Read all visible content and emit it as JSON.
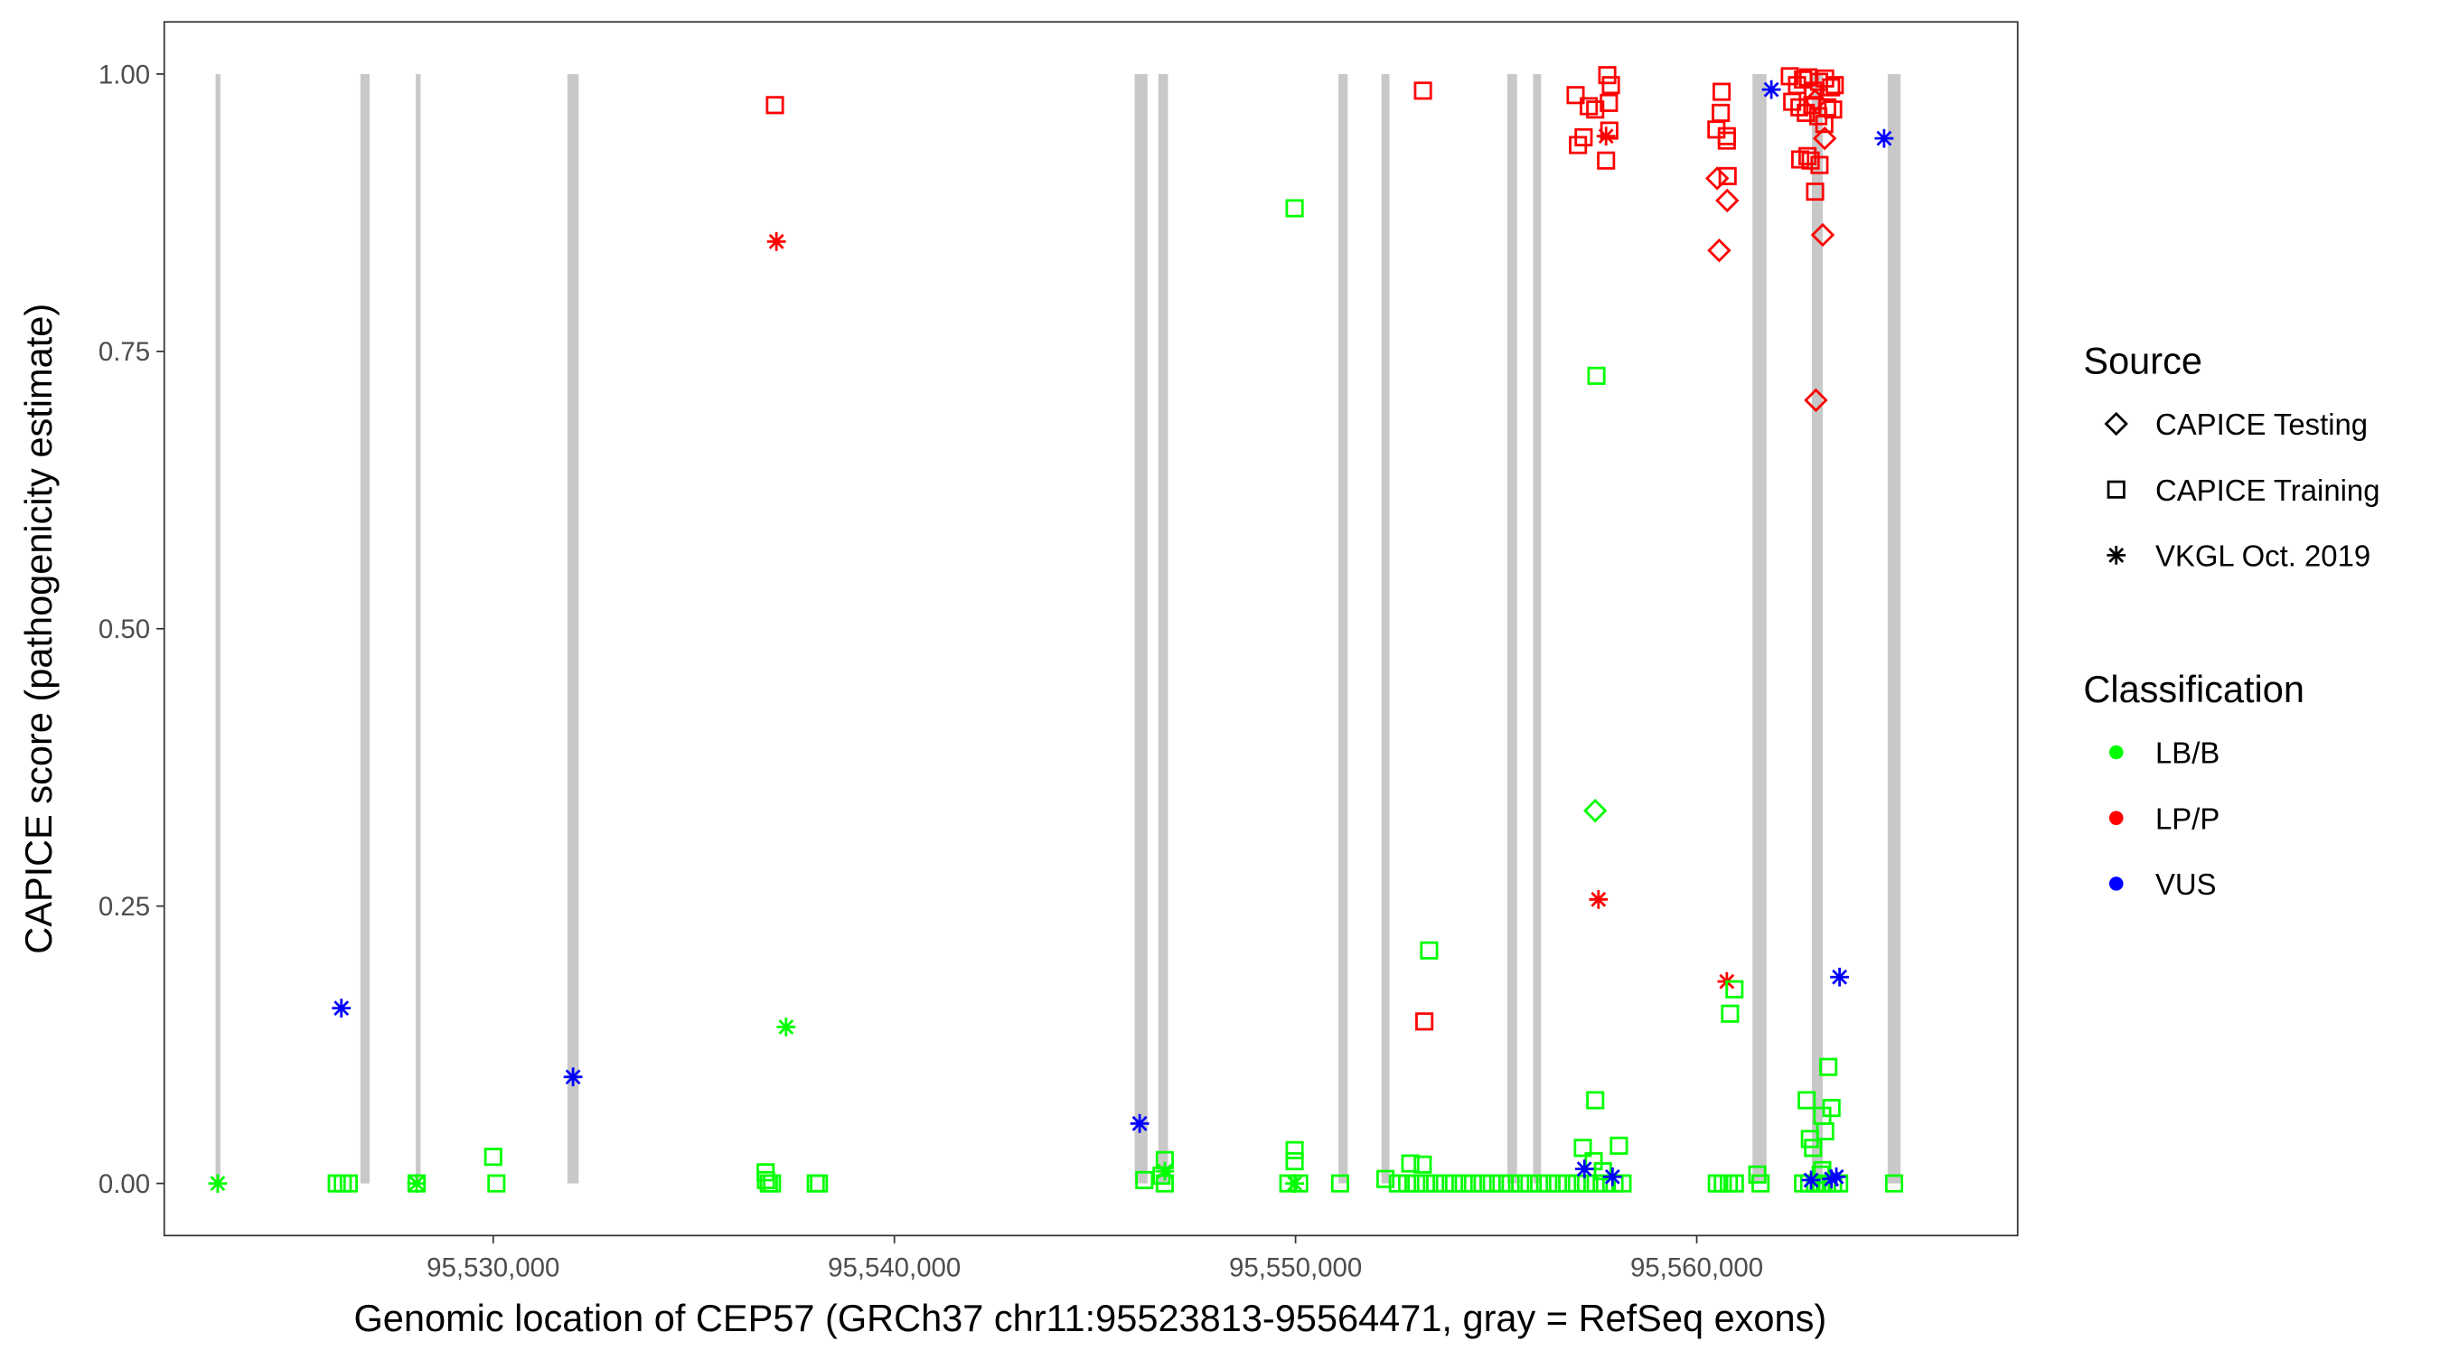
{
  "chart_data": {
    "type": "scatter",
    "xlabel": "Genomic location of CEP57 (GRCh37 chr11:95523813-95564471, gray = RefSeq exons)",
    "ylabel": "CAPICE score (pathogenicity estimate)",
    "xlim": [
      95521800,
      95568000
    ],
    "ylim": [
      -0.047,
      1.047
    ],
    "x_ticks": [
      95530000,
      95540000,
      95550000,
      95560000
    ],
    "x_tick_labels": [
      "95,530,000",
      "95,540,000",
      "95,550,000",
      "95,560,000"
    ],
    "y_ticks": [
      0,
      0.25,
      0.5,
      0.75,
      1.0
    ],
    "y_tick_labels": [
      "0.00",
      "0.25",
      "0.50",
      "0.75",
      "1.00"
    ],
    "grid": false,
    "legend_placement": "right",
    "legend": {
      "source_title": "Source",
      "source_items": [
        {
          "key": "T",
          "label": "CAPICE Testing",
          "shape": "diamond"
        },
        {
          "key": "R",
          "label": "CAPICE Training",
          "shape": "square"
        },
        {
          "key": "V",
          "label": "VKGL Oct. 2019",
          "shape": "asterisk"
        }
      ],
      "class_title": "Classification",
      "class_items": [
        {
          "key": "B",
          "label": "LB/B",
          "color": "#00ff00"
        },
        {
          "key": "P",
          "label": "LP/P",
          "color": "#ff0000"
        },
        {
          "key": "U",
          "label": "VUS",
          "color": "#0000ff"
        }
      ]
    },
    "exon_color": "#c8c8c8",
    "exons": [
      [
        95523080,
        95523200
      ],
      [
        95526690,
        95526920
      ],
      [
        95528070,
        95528190
      ],
      [
        95531850,
        95532130
      ],
      [
        95545990,
        95546310
      ],
      [
        95546580,
        95546820
      ],
      [
        95551070,
        95551300
      ],
      [
        95552140,
        95552340
      ],
      [
        95555280,
        95555520
      ],
      [
        95555920,
        95556120
      ],
      [
        95561390,
        95561740
      ],
      [
        95562870,
        95563140
      ],
      [
        95564760,
        95565080
      ]
    ],
    "point_fields": [
      "position",
      "score",
      "source",
      "classification"
    ],
    "points": [
      [
        95523133,
        0,
        "V",
        "B"
      ],
      [
        95526215,
        0.158,
        "V",
        "U"
      ],
      [
        95526100,
        0,
        "R",
        "B"
      ],
      [
        95526250,
        0,
        "R",
        "B"
      ],
      [
        95526400,
        0,
        "R",
        "B"
      ],
      [
        95528090,
        0,
        "R",
        "B"
      ],
      [
        95528090,
        0,
        "V",
        "B"
      ],
      [
        95530000,
        0.024,
        "R",
        "B"
      ],
      [
        95530080,
        0,
        "R",
        "B"
      ],
      [
        95531990,
        0.096,
        "V",
        "U"
      ],
      [
        95537023,
        0.972,
        "R",
        "P"
      ],
      [
        95537060,
        0.849,
        "V",
        "P"
      ],
      [
        95537300,
        0.141,
        "V",
        "B"
      ],
      [
        95536790,
        0.01,
        "R",
        "B"
      ],
      [
        95536870,
        0,
        "R",
        "B"
      ],
      [
        95536950,
        0,
        "R",
        "B"
      ],
      [
        95536800,
        0.003,
        "R",
        "B"
      ],
      [
        95538040,
        0,
        "R",
        "B"
      ],
      [
        95538120,
        0,
        "R",
        "B"
      ],
      [
        95546114,
        0.054,
        "V",
        "U"
      ],
      [
        95546230,
        0.003,
        "R",
        "B"
      ],
      [
        95546740,
        0.021,
        "R",
        "B"
      ],
      [
        95546740,
        0,
        "R",
        "B"
      ],
      [
        95546660,
        0.007,
        "R",
        "B"
      ],
      [
        95546740,
        0.011,
        "V",
        "B"
      ],
      [
        95549977,
        0.879,
        "R",
        "B"
      ],
      [
        95549977,
        0.03,
        "R",
        "B"
      ],
      [
        95549977,
        0.02,
        "R",
        "B"
      ],
      [
        95549820,
        0,
        "R",
        "B"
      ],
      [
        95550090,
        0,
        "R",
        "B"
      ],
      [
        95549977,
        0,
        "V",
        "B"
      ],
      [
        95551110,
        0,
        "R",
        "B"
      ],
      [
        95552240,
        0.004,
        "R",
        "B"
      ],
      [
        95553176,
        0.985,
        "R",
        "P"
      ],
      [
        95553210,
        0.146,
        "R",
        "P"
      ],
      [
        95553330,
        0.21,
        "R",
        "B"
      ],
      [
        95552860,
        0.018,
        "R",
        "B"
      ],
      [
        95553170,
        0.017,
        "R",
        "B"
      ],
      [
        95552550,
        0,
        "R",
        "B"
      ],
      [
        95552780,
        0,
        "R",
        "B"
      ],
      [
        95553010,
        0,
        "R",
        "B"
      ],
      [
        95553250,
        0,
        "R",
        "B"
      ],
      [
        95553480,
        0,
        "R",
        "B"
      ],
      [
        95553720,
        0,
        "R",
        "B"
      ],
      [
        95553950,
        0,
        "R",
        "B"
      ],
      [
        95554190,
        0,
        "R",
        "B"
      ],
      [
        95554420,
        0,
        "R",
        "B"
      ],
      [
        95554660,
        0,
        "R",
        "B"
      ],
      [
        95554890,
        0,
        "R",
        "B"
      ],
      [
        95555130,
        0,
        "R",
        "B"
      ],
      [
        95555360,
        0,
        "R",
        "B"
      ],
      [
        95555600,
        0,
        "R",
        "B"
      ],
      [
        95555830,
        0,
        "R",
        "B"
      ],
      [
        95556070,
        0,
        "R",
        "B"
      ],
      [
        95556300,
        0,
        "R",
        "B"
      ],
      [
        95556540,
        0,
        "R",
        "B"
      ],
      [
        95556770,
        0,
        "R",
        "B"
      ],
      [
        95557010,
        0,
        "R",
        "B"
      ],
      [
        95557240,
        0,
        "R",
        "B"
      ],
      [
        95557480,
        0,
        "R",
        "B"
      ],
      [
        95557710,
        0,
        "R",
        "B"
      ],
      [
        95557950,
        0,
        "R",
        "B"
      ],
      [
        95558150,
        0,
        "R",
        "B"
      ],
      [
        95557770,
        0.999,
        "R",
        "P"
      ],
      [
        95557860,
        0.99,
        "R",
        "P"
      ],
      [
        95556980,
        0.981,
        "R",
        "P"
      ],
      [
        95557310,
        0.971,
        "R",
        "P"
      ],
      [
        95557470,
        0.968,
        "R",
        "P"
      ],
      [
        95557810,
        0.974,
        "R",
        "P"
      ],
      [
        95557820,
        0.949,
        "R",
        "P"
      ],
      [
        95557180,
        0.943,
        "R",
        "P"
      ],
      [
        95557040,
        0.936,
        "R",
        "P"
      ],
      [
        95557740,
        0.922,
        "R",
        "P"
      ],
      [
        95557740,
        0.944,
        "V",
        "P"
      ],
      [
        95557500,
        0.728,
        "R",
        "B"
      ],
      [
        95557470,
        0.336,
        "T",
        "B"
      ],
      [
        95557550,
        0.256,
        "V",
        "P"
      ],
      [
        95557470,
        0.075,
        "R",
        "B"
      ],
      [
        95557160,
        0.032,
        "R",
        "B"
      ],
      [
        95558060,
        0.034,
        "R",
        "B"
      ],
      [
        95557430,
        0.02,
        "R",
        "B"
      ],
      [
        95557660,
        0.011,
        "R",
        "B"
      ],
      [
        95557200,
        0.013,
        "V",
        "U"
      ],
      [
        95557900,
        0.006,
        "V",
        "U"
      ],
      [
        95560620,
        0.984,
        "R",
        "P"
      ],
      [
        95560600,
        0.965,
        "R",
        "P"
      ],
      [
        95560490,
        0.95,
        "R",
        "P"
      ],
      [
        95560750,
        0.944,
        "R",
        "P"
      ],
      [
        95560750,
        0.94,
        "R",
        "P"
      ],
      [
        95560770,
        0.908,
        "R",
        "P"
      ],
      [
        95560510,
        0.906,
        "T",
        "P"
      ],
      [
        95560760,
        0.886,
        "T",
        "P"
      ],
      [
        95560560,
        0.841,
        "T",
        "P"
      ],
      [
        95560750,
        0.182,
        "V",
        "P"
      ],
      [
        95560940,
        0.175,
        "R",
        "B"
      ],
      [
        95560830,
        0.153,
        "R",
        "B"
      ],
      [
        95560500,
        0,
        "R",
        "B"
      ],
      [
        95560650,
        0,
        "R",
        "B"
      ],
      [
        95560800,
        0,
        "R",
        "B"
      ],
      [
        95560950,
        0,
        "R",
        "B"
      ],
      [
        95561510,
        0.008,
        "R",
        "B"
      ],
      [
        95561590,
        0,
        "R",
        "B"
      ],
      [
        95561860,
        0.986,
        "V",
        "U"
      ],
      [
        95564670,
        0.942,
        "V",
        "U"
      ],
      [
        95562320,
        0.998,
        "R",
        "P"
      ],
      [
        95562500,
        0.99,
        "R",
        "P"
      ],
      [
        95562650,
        0.995,
        "R",
        "P"
      ],
      [
        95562780,
        0.997,
        "R",
        "P"
      ],
      [
        95562900,
        0.985,
        "R",
        "P"
      ],
      [
        95563050,
        0.993,
        "R",
        "P"
      ],
      [
        95563200,
        0.996,
        "R",
        "P"
      ],
      [
        95563350,
        0.988,
        "R",
        "P"
      ],
      [
        95563440,
        0.99,
        "R",
        "P"
      ],
      [
        95562380,
        0.975,
        "R",
        "P"
      ],
      [
        95562560,
        0.97,
        "R",
        "P"
      ],
      [
        95562720,
        0.965,
        "R",
        "P"
      ],
      [
        95562880,
        0.972,
        "R",
        "P"
      ],
      [
        95563030,
        0.962,
        "R",
        "P"
      ],
      [
        95563250,
        0.97,
        "R",
        "P"
      ],
      [
        95563400,
        0.968,
        "R",
        "P"
      ],
      [
        95562950,
        0.976,
        "T",
        "P"
      ],
      [
        95563190,
        0.942,
        "T",
        "P"
      ],
      [
        95563180,
        0.955,
        "R",
        "P"
      ],
      [
        95562580,
        0.923,
        "R",
        "P"
      ],
      [
        95562760,
        0.926,
        "R",
        "P"
      ],
      [
        95562840,
        0.922,
        "R",
        "P"
      ],
      [
        95563060,
        0.918,
        "R",
        "P"
      ],
      [
        95562950,
        0.894,
        "R",
        "P"
      ],
      [
        95563140,
        0.855,
        "T",
        "P"
      ],
      [
        95562970,
        0.706,
        "T",
        "P"
      ],
      [
        95563560,
        0.186,
        "V",
        "U"
      ],
      [
        95563280,
        0.105,
        "R",
        "B"
      ],
      [
        95562740,
        0.075,
        "R",
        "B"
      ],
      [
        95563360,
        0.068,
        "R",
        "B"
      ],
      [
        95563130,
        0.061,
        "R",
        "B"
      ],
      [
        95563200,
        0.047,
        "R",
        "B"
      ],
      [
        95562820,
        0.04,
        "R",
        "B"
      ],
      [
        95562900,
        0.032,
        "R",
        "B"
      ],
      [
        95563130,
        0.012,
        "R",
        "B"
      ],
      [
        95563090,
        0.008,
        "R",
        "B"
      ],
      [
        95562650,
        0,
        "R",
        "B"
      ],
      [
        95562800,
        0,
        "R",
        "B"
      ],
      [
        95562950,
        0,
        "R",
        "B"
      ],
      [
        95563100,
        0,
        "R",
        "B"
      ],
      [
        95563250,
        0,
        "R",
        "B"
      ],
      [
        95563400,
        0,
        "R",
        "B"
      ],
      [
        95563550,
        0,
        "R",
        "B"
      ],
      [
        95562850,
        0.003,
        "V",
        "U"
      ],
      [
        95563360,
        0.004,
        "V",
        "U"
      ],
      [
        95563480,
        0.006,
        "V",
        "U"
      ],
      [
        95564920,
        0,
        "R",
        "B"
      ]
    ]
  }
}
